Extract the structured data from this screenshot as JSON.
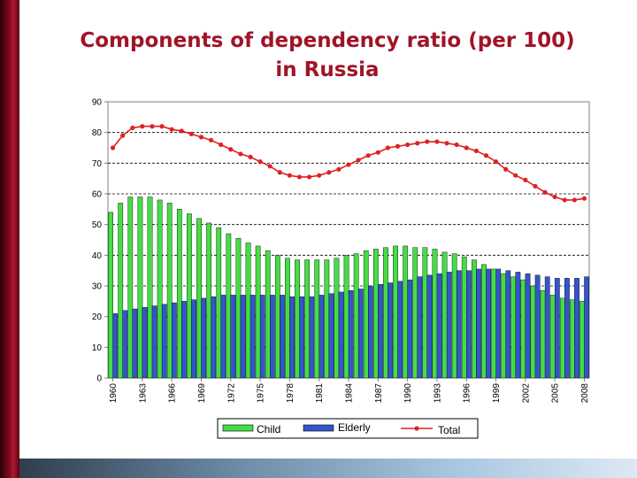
{
  "title": {
    "line1": "Components of dependency ratio (per 100)",
    "line2": "in Russia"
  },
  "colors": {
    "child": "#44dd44",
    "elderly": "#3355cc",
    "total": "#dd2222",
    "title": "#a01428"
  },
  "chart_data": {
    "type": "bar",
    "title": "Components of dependency ratio (per 100) in Russia",
    "xlabel": "",
    "ylabel": "",
    "ylim": [
      0,
      90
    ],
    "yticks": [
      0,
      10,
      20,
      30,
      40,
      50,
      60,
      70,
      80,
      90
    ],
    "grid": true,
    "legend_position": "bottom",
    "categories": [
      "1960",
      "1961",
      "1962",
      "1963",
      "1964",
      "1965",
      "1966",
      "1967",
      "1968",
      "1969",
      "1970",
      "1971",
      "1972",
      "1973",
      "1974",
      "1975",
      "1976",
      "1977",
      "1978",
      "1979",
      "1980",
      "1981",
      "1982",
      "1983",
      "1984",
      "1985",
      "1986",
      "1987",
      "1988",
      "1989",
      "1990",
      "1991",
      "1992",
      "1993",
      "1994",
      "1995",
      "1996",
      "1997",
      "1998",
      "1999",
      "2000",
      "2001",
      "2002",
      "2003",
      "2004",
      "2005",
      "2006",
      "2007",
      "2008"
    ],
    "xtick_labels": [
      "1960",
      "1963",
      "1966",
      "1969",
      "1972",
      "1975",
      "1978",
      "1981",
      "1984",
      "1987",
      "1990",
      "1993",
      "1996",
      "1999",
      "2002",
      "2005",
      "2008"
    ],
    "series": [
      {
        "name": "Child",
        "type": "bar",
        "values": [
          54,
          57,
          59,
          59,
          59,
          58,
          57,
          55,
          53.5,
          52,
          50.5,
          49,
          47,
          45.5,
          44,
          43,
          41.5,
          40,
          39,
          38.5,
          38.5,
          38.5,
          38.5,
          39,
          40,
          40.5,
          41.5,
          42,
          42.5,
          43,
          43,
          42.5,
          42.5,
          42,
          41,
          40.5,
          39.5,
          38.5,
          37,
          35.5,
          34,
          33,
          32,
          30,
          28.5,
          27,
          26,
          25.5,
          25
        ]
      },
      {
        "name": "Elderly",
        "type": "bar",
        "values": [
          21,
          22,
          22.5,
          23,
          23.5,
          24,
          24.5,
          25,
          25.5,
          26,
          26.5,
          27,
          27,
          27,
          27,
          27,
          27,
          27,
          26.5,
          26.5,
          26.5,
          27,
          27.5,
          28,
          28.5,
          29,
          30,
          30.5,
          31,
          31.5,
          32,
          33,
          33.5,
          34,
          34.5,
          35,
          35,
          35.5,
          35.5,
          35.5,
          35,
          34.5,
          34,
          33.5,
          33,
          32.5,
          32.5,
          32.5,
          33
        ]
      },
      {
        "name": "Total",
        "type": "line",
        "values": [
          75,
          79,
          81.5,
          82,
          82,
          82,
          81,
          80.5,
          79.5,
          78.5,
          77.5,
          76,
          74.5,
          73,
          72,
          70.5,
          69,
          67,
          66,
          65.5,
          65.5,
          66,
          67,
          68,
          69.5,
          71,
          72.5,
          73.5,
          75,
          75.5,
          76,
          76.5,
          77,
          77,
          76.5,
          76,
          75,
          74,
          72.5,
          70.5,
          68,
          66,
          64.5,
          62.5,
          60.5,
          59,
          58,
          58,
          58.5
        ]
      }
    ]
  }
}
